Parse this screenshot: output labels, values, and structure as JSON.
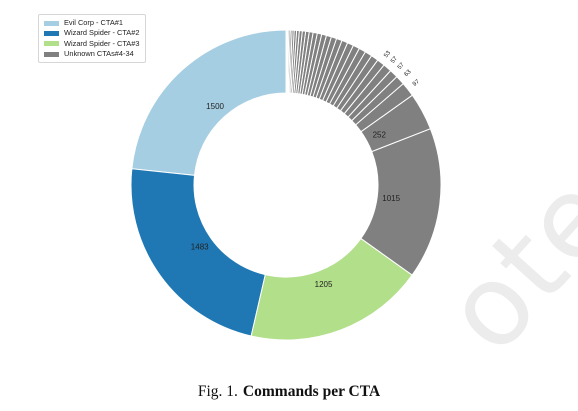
{
  "chart_data": {
    "type": "pie",
    "donut": true,
    "title": "",
    "legend": {
      "placement": "top-left",
      "entries": [
        {
          "label": "Evil Corp - CTA#1",
          "color": "#a6cee3"
        },
        {
          "label": "Wizard Spider - CTA#2",
          "color": "#1f78b4"
        },
        {
          "label": "Wizard Spider - CTA#3",
          "color": "#b2df8a"
        },
        {
          "label": "Unknown CTAs#4-34",
          "color": "#808080"
        }
      ]
    },
    "slices": [
      {
        "label": "1500",
        "value": 1500,
        "color": "#a6cee3"
      },
      {
        "label": "1483",
        "value": 1483,
        "color": "#1f78b4"
      },
      {
        "label": "1205",
        "value": 1205,
        "color": "#b2df8a"
      },
      {
        "label": "1015",
        "value": 1015,
        "color": "#808080"
      },
      {
        "label": "252",
        "value": 252,
        "color": "#808080"
      },
      {
        "label": "97",
        "value": 97,
        "color": "#808080"
      },
      {
        "label": "63",
        "value": 63,
        "color": "#808080"
      },
      {
        "label": "57",
        "value": 57,
        "color": "#808080"
      },
      {
        "label": "57",
        "value": 57,
        "color": "#808080"
      },
      {
        "label": "53",
        "value": 53,
        "color": "#808080"
      },
      {
        "label": "",
        "value": 50,
        "color": "#808080"
      },
      {
        "label": "",
        "value": 48,
        "color": "#808080"
      },
      {
        "label": "",
        "value": 46,
        "color": "#808080"
      },
      {
        "label": "",
        "value": 44,
        "color": "#808080"
      },
      {
        "label": "",
        "value": 42,
        "color": "#808080"
      },
      {
        "label": "",
        "value": 40,
        "color": "#808080"
      },
      {
        "label": "",
        "value": 38,
        "color": "#808080"
      },
      {
        "label": "",
        "value": 36,
        "color": "#808080"
      },
      {
        "label": "",
        "value": 34,
        "color": "#808080"
      },
      {
        "label": "",
        "value": 32,
        "color": "#808080"
      },
      {
        "label": "",
        "value": 30,
        "color": "#808080"
      },
      {
        "label": "",
        "value": 28,
        "color": "#808080"
      },
      {
        "label": "",
        "value": 26,
        "color": "#808080"
      },
      {
        "label": "",
        "value": 24,
        "color": "#808080"
      },
      {
        "label": "",
        "value": 22,
        "color": "#808080"
      },
      {
        "label": "",
        "value": 20,
        "color": "#808080"
      },
      {
        "label": "",
        "value": 18,
        "color": "#808080"
      },
      {
        "label": "",
        "value": 16,
        "color": "#808080"
      },
      {
        "label": "",
        "value": 14,
        "color": "#808080"
      },
      {
        "label": "",
        "value": 12,
        "color": "#808080"
      },
      {
        "label": "",
        "value": 10,
        "color": "#808080"
      },
      {
        "label": "",
        "value": 8,
        "color": "#808080"
      },
      {
        "label": "",
        "value": 6,
        "color": "#808080"
      },
      {
        "label": "",
        "value": 4,
        "color": "#808080"
      }
    ]
  },
  "caption": {
    "label": "Fig. 1.",
    "title": "Commands per CTA"
  },
  "watermark": "ote"
}
